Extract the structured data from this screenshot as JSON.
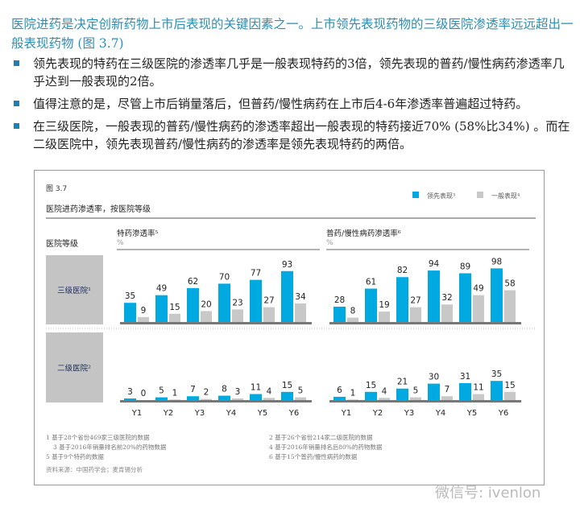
{
  "headline": "医院进药是决定创新药物上市后表现的关键因素之一。上市领先表现药物的三级医院渗透率远远超出一般表现药物 (图 3.7)",
  "bullets": [
    "领先表现的特药在三级医院的渗透率几乎是一般表现特药的3倍，领先表现的普药/慢性病药渗透率几乎达到一般表现的2倍。",
    "值得注意的是，尽管上市后销量落后，但普药/慢性病药在上市后4-6年渗透率普遍超过特药。",
    "在三级医院，一般表现的普药/慢性病药的渗透率超出一般表现的特药接近70% (58%比34%) 。而在二级医院中，领先表现普药/慢性病药的渗透率是领先表现特药的两倍。"
  ],
  "figure": {
    "label": "图 3.7",
    "subtitle": "医院进药渗透率，按医院等级",
    "row_header": "医院等级"
  },
  "colors": {
    "leading": "#00a9e0",
    "general": "#c8c8c8",
    "rowbox": "#c4c4c4"
  },
  "chart_data": {
    "type": "bar",
    "categories": [
      "Y1",
      "Y2",
      "Y3",
      "Y4",
      "Y5",
      "Y6"
    ],
    "unit": "%",
    "legend": [
      {
        "name": "领先表现³",
        "color": "#00a9e0"
      },
      {
        "name": "一般表现⁴",
        "color": "#c8c8c8"
      }
    ],
    "legend_placement": "top-right",
    "rows": [
      "三级医院¹",
      "二级医院²"
    ],
    "panels": [
      {
        "title": "特药渗透率⁵",
        "ylabel": "%",
        "data": [
          {
            "row": "三级医院¹",
            "series": [
              {
                "name": "领先表现³",
                "values": [
                  35,
                  49,
                  62,
                  70,
                  77,
                  93
                ]
              },
              {
                "name": "一般表现⁴",
                "values": [
                  9,
                  15,
                  20,
                  23,
                  27,
                  34
                ]
              }
            ]
          },
          {
            "row": "二级医院²",
            "series": [
              {
                "name": "领先表现³",
                "values": [
                  3,
                  5,
                  7,
                  8,
                  11,
                  15
                ]
              },
              {
                "name": "一般表现⁴",
                "values": [
                  0,
                  1,
                  2,
                  3,
                  4,
                  5
                ]
              }
            ]
          }
        ]
      },
      {
        "title": "普药/慢性病药渗透率⁶",
        "ylabel": "%",
        "data": [
          {
            "row": "三级医院¹",
            "series": [
              {
                "name": "领先表现³",
                "values": [
                  28,
                  61,
                  82,
                  94,
                  89,
                  98
                ]
              },
              {
                "name": "一般表现⁴",
                "values": [
                  8,
                  19,
                  27,
                  32,
                  49,
                  58
                ]
              }
            ]
          },
          {
            "row": "二级医院²",
            "series": [
              {
                "name": "领先表现³",
                "values": [
                  6,
                  15,
                  21,
                  30,
                  31,
                  35
                ]
              },
              {
                "name": "一般表现⁴",
                "values": [
                  1,
                  4,
                  5,
                  7,
                  11,
                  15
                ]
              }
            ]
          }
        ]
      }
    ]
  },
  "notes": [
    "1 基于28个省份469家三级医院的数据",
    "2 基于26个省份214家二级医院的数据",
    "3 基于2016年销量排名前20%的药物数据",
    "4 基于2016年销量排名后80%的药物数据",
    "5 基于9个特药的数据",
    "6 基于15个普药/慢性病药的数据"
  ],
  "source": "资料来源：中国药学会；麦肯锡分析",
  "watermark": "微信号: ivenlon"
}
